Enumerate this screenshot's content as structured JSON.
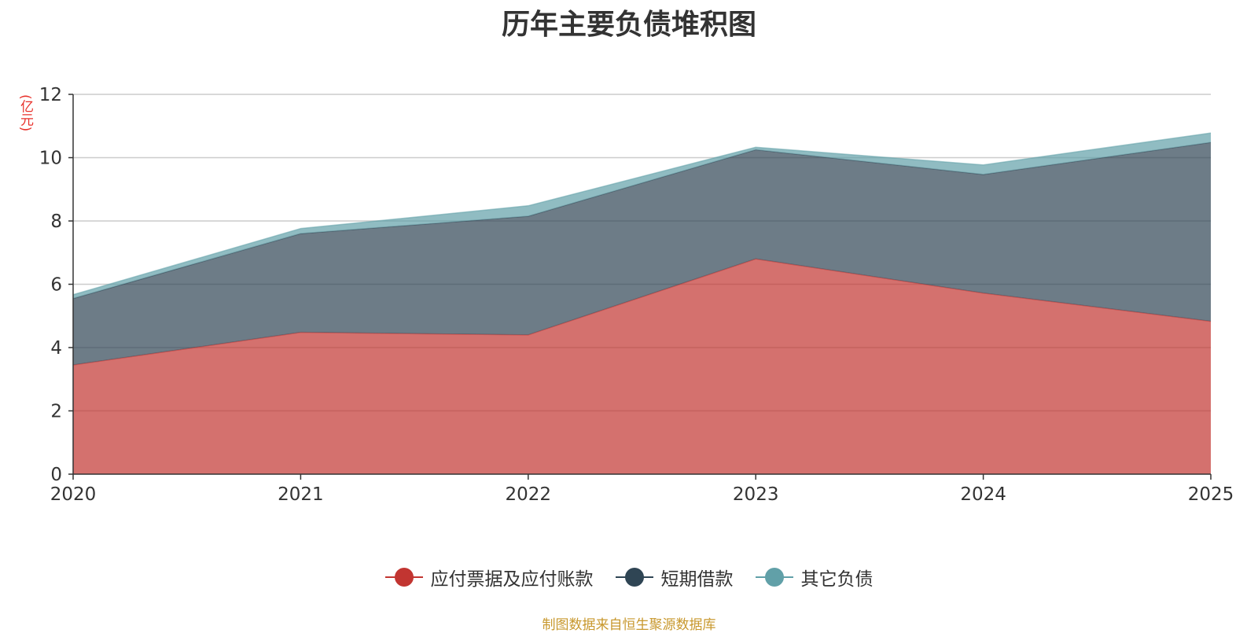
{
  "chart_data": {
    "type": "area",
    "stacked": true,
    "title": "历年主要负债堆积图",
    "y_unit": "(亿元)",
    "x": [
      "2020",
      "2021",
      "2022",
      "2023",
      "2024",
      "2025"
    ],
    "ylim": [
      0,
      12
    ],
    "yticks": [
      0,
      2,
      4,
      6,
      8,
      10,
      12
    ],
    "grid": true,
    "series": [
      {
        "name": "应付票据及应付账款",
        "color": "#c23531",
        "values": [
          3.45,
          4.48,
          4.4,
          6.8,
          5.72,
          4.83
        ]
      },
      {
        "name": "短期借款",
        "color": "#2f4554",
        "values": [
          2.1,
          3.12,
          3.75,
          3.45,
          3.75,
          5.65
        ]
      },
      {
        "name": "其它负债",
        "color": "#61a0a8",
        "values": [
          0.12,
          0.16,
          0.33,
          0.08,
          0.3,
          0.3
        ]
      }
    ],
    "legend_position": "bottom-center",
    "source": "制图数据来自恒生聚源数据库"
  }
}
